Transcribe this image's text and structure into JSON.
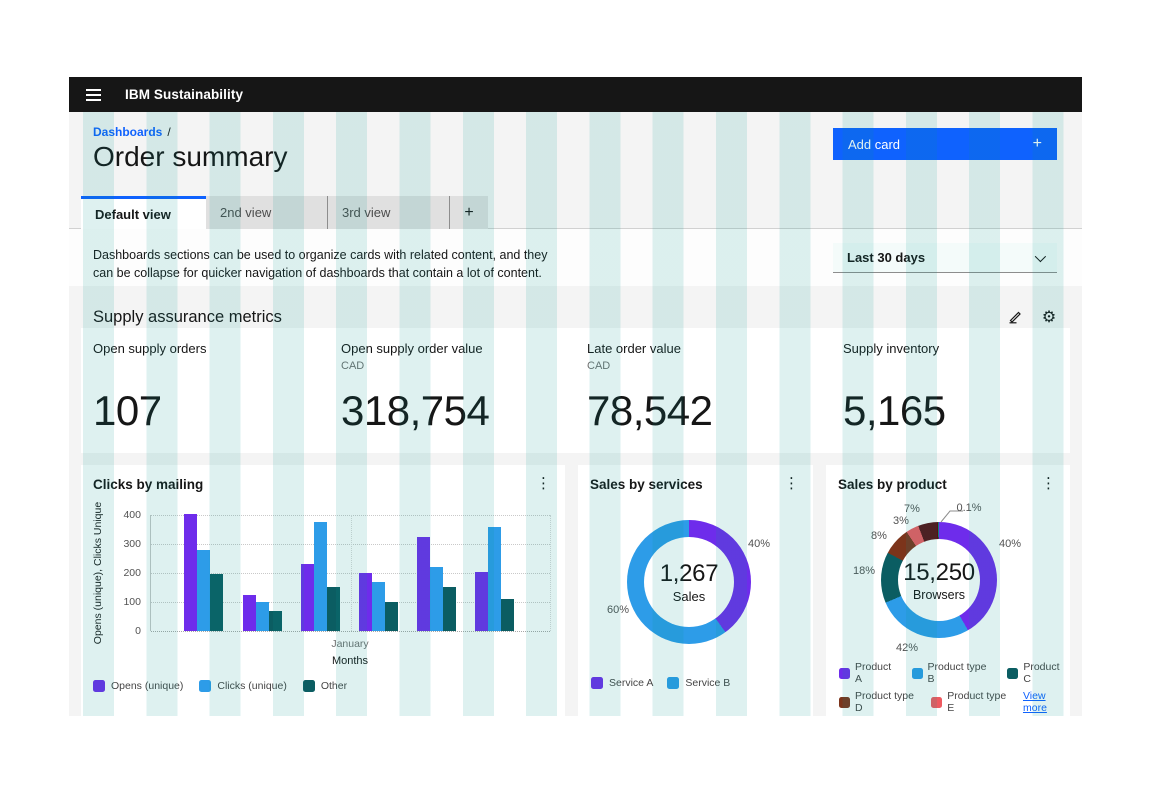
{
  "header": {
    "product": "IBM Sustainability",
    "menu_icon": "hamburger-menu"
  },
  "breadcrumb": {
    "items": [
      "Dashboards"
    ],
    "separator": "/"
  },
  "page": {
    "title": "Order summary"
  },
  "actions": {
    "add_card": "Add card",
    "add_card_icon": "+"
  },
  "tabs": [
    {
      "label": "Default view",
      "active": true
    },
    {
      "label": "2nd view",
      "active": false
    },
    {
      "label": "3rd view",
      "active": false
    },
    {
      "label": "+",
      "active": false,
      "role": "add-tab"
    }
  ],
  "description": "Dashboards sections can be used to organize cards with related content, and they can be collapse for quicker navigation of dashboards that contain a lot of content.",
  "filter": {
    "value": "Last 30 days",
    "icon": "chevron-down"
  },
  "section": {
    "title": "Supply assurance metrics",
    "icons": [
      "pencil-edit",
      "gear-settings"
    ]
  },
  "kpis": [
    {
      "label": "Open supply orders",
      "unit": "",
      "value": "107"
    },
    {
      "label": "Open supply order value",
      "unit": "CAD",
      "value": "318,754"
    },
    {
      "label": "Late order value",
      "unit": "CAD",
      "value": "78,542"
    },
    {
      "label": "Supply inventory",
      "unit": "",
      "value": "5,165"
    }
  ],
  "colors": {
    "accent": "#0f62fe",
    "header_bg": "#161616",
    "page_bg": "#f4f4f4",
    "card_bg": "#ffffff",
    "grid_stripe": "#dff0ef",
    "link": "#0f62fe"
  },
  "card_overflow_icon": "vertical-kebab-menu",
  "chart_data": [
    {
      "type": "bar",
      "title": "Clicks by mailing",
      "xlabel": "Months",
      "ylabel": "Opens (unique), Clicks Unique",
      "x_ticks": [
        "January"
      ],
      "y_ticks": [
        "400",
        "300",
        "200",
        "100",
        "0"
      ],
      "ylim": [
        0,
        400
      ],
      "grid": "horizontal-dotted",
      "legend_position": "bottom",
      "series": [
        {
          "name": "Opens (unique)",
          "color": "#6e2ceb",
          "values": [
            405,
            125,
            230,
            200,
            325,
            205
          ]
        },
        {
          "name": "Clicks (unique)",
          "color": "#2d9ce8",
          "values": [
            280,
            100,
            375,
            170,
            220,
            360
          ]
        },
        {
          "name": "Other",
          "color": "#0b5d62",
          "values": [
            195,
            70,
            150,
            100,
            150,
            110
          ]
        }
      ]
    },
    {
      "type": "pie",
      "subtype": "donut",
      "title": "Sales by services",
      "center_value": "1,267",
      "center_label": "Sales",
      "legend_position": "bottom",
      "slices": [
        {
          "name": "Service A",
          "pct": "40%",
          "value": 40,
          "color": "#6e2ceb",
          "deg": 144
        },
        {
          "name": "Service B",
          "pct": "60%",
          "value": 60,
          "color": "#2d9ce8",
          "deg": 216
        }
      ]
    },
    {
      "type": "pie",
      "subtype": "donut",
      "title": "Sales by product",
      "center_value": "15,250",
      "center_label": "Browsers",
      "legend_position": "bottom",
      "view_more": "View more",
      "slices": [
        {
          "name": "Product A",
          "pct": "40%",
          "value": 40,
          "color": "#6e2ceb",
          "deg": 150
        },
        {
          "name": "Product type B",
          "pct": "42%",
          "value": 42,
          "color": "#2d9ce8",
          "deg": 97
        },
        {
          "name": "Product C",
          "pct": "18%",
          "value": 18,
          "color": "#0b5d62",
          "deg": 51
        },
        {
          "name": "Product type D",
          "pct": "8%",
          "value": 8,
          "color": "#7c341b",
          "deg": 28
        },
        {
          "name": "Product type E",
          "pct": "3%",
          "value": 3,
          "color": "#ee5a60",
          "deg": 13
        },
        {
          "name": "",
          "pct": "7%",
          "value": 7,
          "color": "#571013",
          "deg": 20
        },
        {
          "name": "",
          "pct": "0.1%",
          "value": 0.1,
          "color": "#12807c",
          "deg": 1
        }
      ]
    }
  ]
}
